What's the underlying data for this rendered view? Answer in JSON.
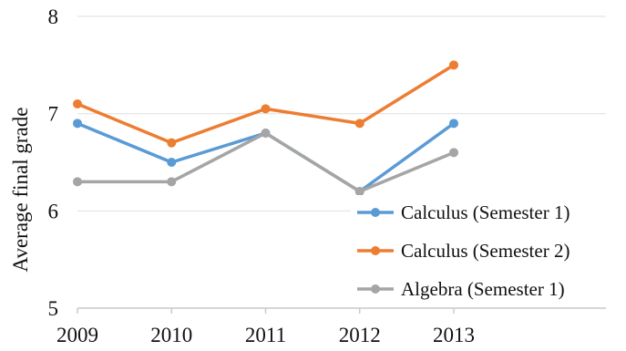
{
  "chart_data": {
    "type": "line",
    "xlabel": "",
    "ylabel": "Average final grade",
    "x": [
      "2009",
      "2010",
      "2011",
      "2012",
      "2013"
    ],
    "yticks": [
      "5",
      "6",
      "7",
      "8"
    ],
    "ylim": [
      5,
      8
    ],
    "grid": true,
    "legend_position": "bottom-right",
    "series": [
      {
        "name": "Calculus (Semester 1)",
        "color": "#5b9bd5",
        "values": [
          6.9,
          6.5,
          6.8,
          6.2,
          6.9
        ]
      },
      {
        "name": "Calculus (Semester 2)",
        "color": "#ed7d31",
        "values": [
          7.1,
          6.7,
          7.05,
          6.9,
          7.5
        ]
      },
      {
        "name": "Algebra (Semester 1)",
        "color": "#a5a5a5",
        "values": [
          6.3,
          6.3,
          6.8,
          6.2,
          6.6
        ]
      }
    ]
  }
}
